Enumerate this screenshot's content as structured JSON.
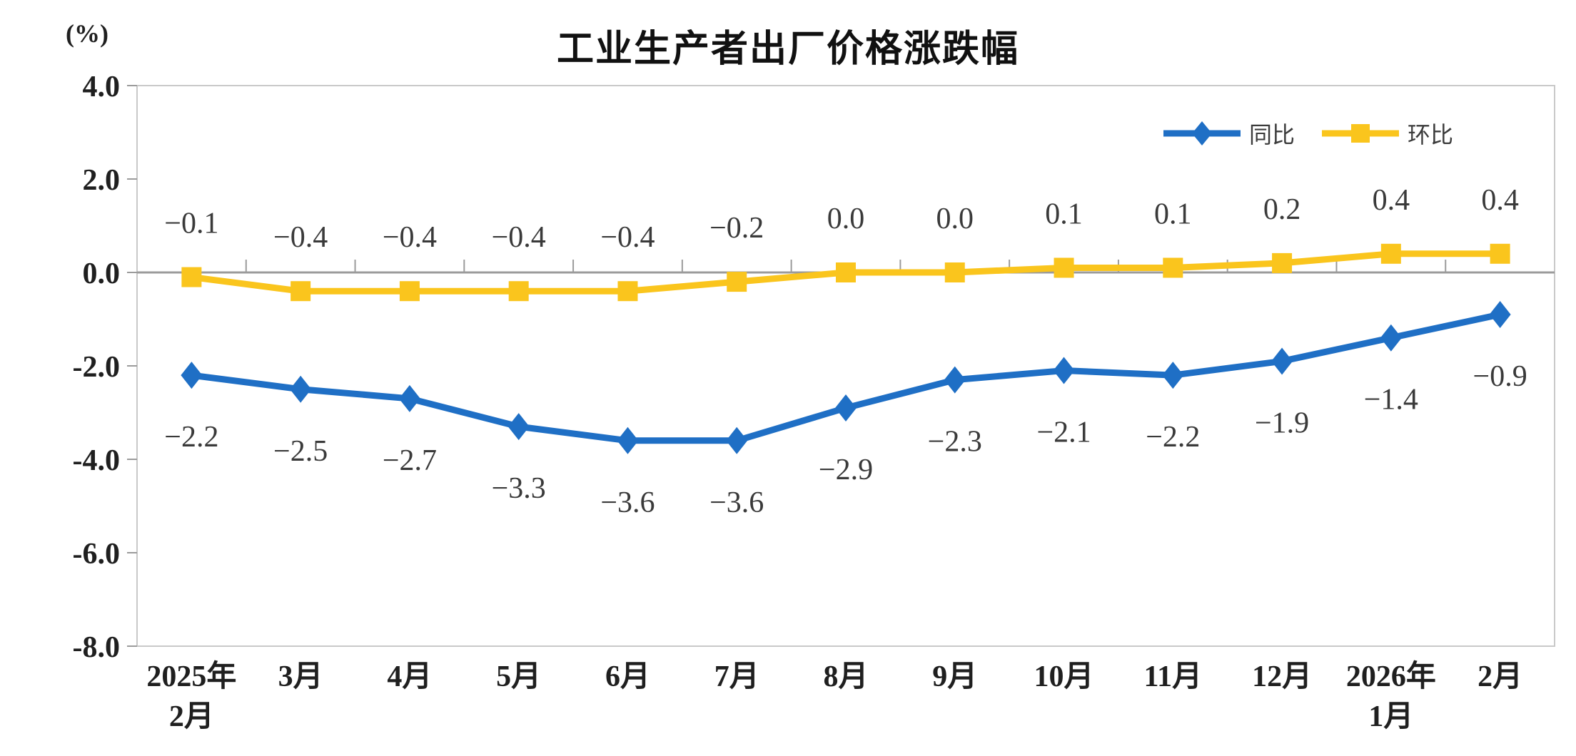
{
  "chart_data": {
    "type": "line",
    "title": "工业生产者出厂价格涨跌幅",
    "unit_label": "(%)",
    "categories": [
      "2025年\n2月",
      "3月",
      "4月",
      "5月",
      "6月",
      "7月",
      "8月",
      "9月",
      "10月",
      "11月",
      "12月",
      "2026年\n1月",
      "2月"
    ],
    "series": [
      {
        "name": "同比",
        "marker": "diamond",
        "color": "#1f6fc5",
        "label_position": "below",
        "values": [
          -2.2,
          -2.5,
          -2.7,
          -3.3,
          -3.6,
          -3.6,
          -2.9,
          -2.3,
          -2.1,
          -2.2,
          -1.9,
          -1.4,
          -0.9
        ]
      },
      {
        "name": "环比",
        "marker": "square",
        "color": "#fac51d",
        "label_position": "above",
        "values": [
          -0.1,
          -0.4,
          -0.4,
          -0.4,
          -0.4,
          -0.2,
          0.0,
          0.0,
          0.1,
          0.1,
          0.2,
          0.4,
          0.4
        ]
      }
    ],
    "y_ticks": [
      4.0,
      2.0,
      0.0,
      -2.0,
      -4.0,
      -6.0,
      -8.0
    ],
    "ylim": [
      -8.0,
      4.0
    ],
    "grid": false,
    "legend_position": "top-right",
    "colors": {
      "axis": "#9b9b9b",
      "border": "#c9c9c9",
      "tick_label": "#1f1f1f",
      "data_label": "#3a3a3a",
      "background": "#ffffff"
    }
  }
}
